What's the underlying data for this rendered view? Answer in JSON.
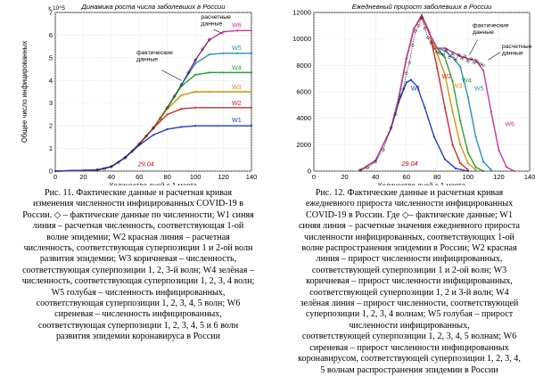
{
  "figures": [
    {
      "id": "fig11",
      "caption_lines": [
        "Рис. 11. Фактические данные и расчетная кривая",
        "изменения численности инфицированных COVID-19 в",
        "России. ◇ – фактические данные по численности; W1 синяя",
        "линия – расчетная численность, соответствующая 1-ой",
        "волне эпидемии; W2 красная линия – расчетная",
        "численность, соответствующая суперпозиции 1 и 2-ой волн",
        "развития эпидемии; W3 коричневая – численность,",
        "соответствующая суперпозиции 1, 2, 3-й волн; W4 зелёная –",
        "численность, соответствующая суперпозиции 1, 2, 3, 4 волн;",
        "W5 голубая – численность инфицированных,",
        "соответствующая суперпозиции 1, 2, 3, 4, 5 волн; W6",
        "сиреневая – численность инфицированных,",
        "соответствующая суперпозиции 1, 2, 3, 4, 5 и 6 волн",
        "развития эпидемии коронавируса в России"
      ]
    },
    {
      "id": "fig12",
      "caption_lines": [
        "Рис. 12. Фактические данные и расчетная кривая",
        "ежедневного прироста численности инфицированных",
        "COVID-19 в России. Где ◇– фактические данные; W1",
        "синяя линия – расчетные значения ежедневного прироста",
        "численности инфицированных, соответствующих 1-ой",
        "волне распространения эпидемии в России; W2 красная",
        "линия – прирост численности инфицированных,",
        "соответствующей суперпозиции 1 и 2-ой волн; W3",
        "коричневая – прирост численности инфицированных,",
        "соответствующей суперпозиции 1, 2 и 3-й волн; W4",
        "зелёная линия – прирост численности, соответствующей",
        "суперпозиции 1, 2, 3, 4 волнам; W5 голубая – прирост",
        "численности инфицированных,",
        "соответствующей суперпозиции 1, 2, 3, 4, 5 волнам; W6",
        "сиреневая – прирост численности инфицированных",
        "коронавирусом, соответствующей суперпозиции 1, 2, 3, 4,",
        "5 волнам распространения эпидемии в России"
      ]
    }
  ],
  "chart_data": [
    {
      "type": "line",
      "title": "Динамика роста числа заболевших в России",
      "xlabel": "Количество дней с 1 марта",
      "ylabel": "Общее число инфицированных",
      "y_exponent": "x 10^5",
      "xlim": [
        0,
        140
      ],
      "ylim": [
        0,
        7
      ],
      "xticks": [
        0,
        20,
        40,
        60,
        80,
        100,
        120,
        140
      ],
      "yticks": [
        0,
        1,
        2,
        3,
        4,
        5,
        6,
        7
      ],
      "grid": true,
      "annotations": [
        {
          "text": "расчетные данные",
          "x": 104,
          "y": 6.5
        },
        {
          "text": "фактические данные",
          "x": 65,
          "y": 5.1
        },
        {
          "text": "29.04",
          "x": 59,
          "y": 0.25,
          "color": "#cc0000"
        }
      ],
      "series": [
        {
          "name": "W6",
          "color": "#cc3399",
          "values": [
            [
              0,
              0
            ],
            [
              30,
              0.05
            ],
            [
              40,
              0.2
            ],
            [
              50,
              0.6
            ],
            [
              60,
              1.2
            ],
            [
              70,
              1.9
            ],
            [
              80,
              2.8
            ],
            [
              90,
              3.8
            ],
            [
              100,
              4.9
            ],
            [
              110,
              5.8
            ],
            [
              120,
              6.15
            ],
            [
              130,
              6.2
            ],
            [
              140,
              6.2
            ]
          ]
        },
        {
          "name": "W5",
          "color": "#2a8fb8",
          "values": [
            [
              0,
              0
            ],
            [
              30,
              0.05
            ],
            [
              40,
              0.2
            ],
            [
              50,
              0.6
            ],
            [
              60,
              1.2
            ],
            [
              70,
              1.9
            ],
            [
              80,
              2.8
            ],
            [
              90,
              3.8
            ],
            [
              100,
              4.75
            ],
            [
              110,
              5.15
            ],
            [
              120,
              5.2
            ],
            [
              130,
              5.2
            ],
            [
              140,
              5.2
            ]
          ]
        },
        {
          "name": "W4",
          "color": "#2ca02c",
          "values": [
            [
              0,
              0
            ],
            [
              30,
              0.05
            ],
            [
              40,
              0.2
            ],
            [
              50,
              0.6
            ],
            [
              60,
              1.2
            ],
            [
              70,
              1.9
            ],
            [
              80,
              2.8
            ],
            [
              90,
              3.75
            ],
            [
              100,
              4.25
            ],
            [
              110,
              4.35
            ],
            [
              120,
              4.35
            ],
            [
              140,
              4.35
            ]
          ]
        },
        {
          "name": "W3",
          "color": "#d4920a",
          "values": [
            [
              0,
              0
            ],
            [
              30,
              0.05
            ],
            [
              40,
              0.2
            ],
            [
              50,
              0.6
            ],
            [
              60,
              1.2
            ],
            [
              70,
              1.9
            ],
            [
              80,
              2.75
            ],
            [
              90,
              3.35
            ],
            [
              100,
              3.5
            ],
            [
              110,
              3.5
            ],
            [
              140,
              3.5
            ]
          ]
        },
        {
          "name": "W2",
          "color": "#d62728",
          "values": [
            [
              0,
              0
            ],
            [
              30,
              0.05
            ],
            [
              40,
              0.2
            ],
            [
              50,
              0.6
            ],
            [
              60,
              1.2
            ],
            [
              70,
              1.9
            ],
            [
              80,
              2.5
            ],
            [
              90,
              2.75
            ],
            [
              100,
              2.8
            ],
            [
              140,
              2.8
            ]
          ]
        },
        {
          "name": "W1",
          "color": "#1f3fbf",
          "values": [
            [
              0,
              0
            ],
            [
              30,
              0.05
            ],
            [
              40,
              0.2
            ],
            [
              50,
              0.6
            ],
            [
              60,
              1.15
            ],
            [
              70,
              1.6
            ],
            [
              80,
              1.85
            ],
            [
              90,
              1.95
            ],
            [
              100,
              2.0
            ],
            [
              140,
              2.0
            ]
          ]
        }
      ],
      "facts": [
        [
          30,
          0.05
        ],
        [
          35,
          0.1
        ],
        [
          40,
          0.2
        ],
        [
          45,
          0.38
        ],
        [
          50,
          0.6
        ],
        [
          55,
          0.88
        ],
        [
          60,
          1.2
        ],
        [
          65,
          1.55
        ],
        [
          70,
          1.9
        ],
        [
          75,
          2.32
        ],
        [
          80,
          2.8
        ],
        [
          85,
          3.3
        ],
        [
          90,
          3.8
        ],
        [
          95,
          4.35
        ],
        [
          100,
          4.9
        ],
        [
          105,
          5.38
        ],
        [
          110,
          5.8
        ]
      ]
    },
    {
      "type": "line",
      "title": "Ежедневный прирост заболевших в России",
      "xlabel": "Количество дней с 1 марта",
      "xlim": [
        0,
        140
      ],
      "ylim": [
        0,
        12000
      ],
      "xticks": [
        0,
        20,
        40,
        60,
        80,
        100,
        120,
        140
      ],
      "yticks": [
        0,
        2000,
        4000,
        6000,
        8000,
        10000,
        12000
      ],
      "grid": true,
      "annotations": [
        {
          "text": "фактические данные",
          "x": 108,
          "y": 10400
        },
        {
          "text": "расчетные данные",
          "x": 126,
          "y": 9000
        },
        {
          "text": "29.04",
          "x": 60,
          "y": 450,
          "color": "#cc0000"
        }
      ],
      "series": [
        {
          "name": "W1",
          "color": "#1f3fbf",
          "values": [
            [
              30,
              50
            ],
            [
              40,
              800
            ],
            [
              50,
              3200
            ],
            [
              55,
              5200
            ],
            [
              60,
              6700
            ],
            [
              63,
              6900
            ],
            [
              67,
              6400
            ],
            [
              72,
              4800
            ],
            [
              78,
              2600
            ],
            [
              85,
              900
            ],
            [
              92,
              200
            ],
            [
              100,
              0
            ]
          ]
        },
        {
          "name": "W2",
          "color": "#d62728",
          "values": [
            [
              30,
              50
            ],
            [
              40,
              800
            ],
            [
              50,
              3200
            ],
            [
              55,
              5500
            ],
            [
              60,
              8500
            ],
            [
              65,
              10800
            ],
            [
              70,
              11800
            ],
            [
              75,
              10500
            ],
            [
              80,
              7800
            ],
            [
              85,
              4800
            ],
            [
              90,
              2000
            ],
            [
              95,
              600
            ],
            [
              100,
              100
            ]
          ]
        },
        {
          "name": "W3",
          "color": "#d4920a",
          "values": [
            [
              30,
              50
            ],
            [
              40,
              800
            ],
            [
              50,
              3200
            ],
            [
              55,
              5500
            ],
            [
              60,
              8500
            ],
            [
              65,
              10800
            ],
            [
              70,
              11700
            ],
            [
              75,
              10400
            ],
            [
              80,
              8900
            ],
            [
              85,
              7300
            ],
            [
              90,
              4500
            ],
            [
              95,
              2000
            ],
            [
              100,
              600
            ],
            [
              105,
              100
            ]
          ]
        },
        {
          "name": "W4",
          "color": "#2ca02c",
          "values": [
            [
              30,
              50
            ],
            [
              40,
              800
            ],
            [
              50,
              3200
            ],
            [
              55,
              5500
            ],
            [
              60,
              8500
            ],
            [
              65,
              10800
            ],
            [
              70,
              11700
            ],
            [
              75,
              10400
            ],
            [
              80,
              9300
            ],
            [
              85,
              8600
            ],
            [
              90,
              6800
            ],
            [
              95,
              3800
            ],
            [
              100,
              1400
            ],
            [
              105,
              300
            ],
            [
              110,
              0
            ]
          ]
        },
        {
          "name": "W5",
          "color": "#2a8fb8",
          "values": [
            [
              30,
              50
            ],
            [
              40,
              800
            ],
            [
              50,
              3200
            ],
            [
              55,
              5500
            ],
            [
              60,
              8500
            ],
            [
              65,
              10800
            ],
            [
              70,
              11700
            ],
            [
              75,
              10400
            ],
            [
              80,
              9300
            ],
            [
              85,
              9100
            ],
            [
              90,
              8600
            ],
            [
              95,
              7900
            ],
            [
              100,
              5600
            ],
            [
              105,
              2600
            ],
            [
              110,
              700
            ],
            [
              115,
              100
            ]
          ]
        },
        {
          "name": "W6",
          "color": "#cc3399",
          "values": [
            [
              30,
              50
            ],
            [
              40,
              800
            ],
            [
              50,
              3200
            ],
            [
              55,
              5500
            ],
            [
              60,
              8500
            ],
            [
              65,
              10800
            ],
            [
              70,
              11700
            ],
            [
              75,
              10400
            ],
            [
              80,
              9300
            ],
            [
              85,
              9300
            ],
            [
              90,
              9000
            ],
            [
              95,
              8700
            ],
            [
              100,
              8500
            ],
            [
              105,
              8400
            ],
            [
              110,
              7600
            ],
            [
              115,
              4500
            ],
            [
              120,
              1600
            ],
            [
              125,
              300
            ],
            [
              130,
              0
            ]
          ]
        }
      ],
      "facts": [
        [
          30,
          80
        ],
        [
          35,
          250
        ],
        [
          40,
          700
        ],
        [
          45,
          1600
        ],
        [
          50,
          3300
        ],
        [
          53,
          4300
        ],
        [
          56,
          5700
        ],
        [
          58,
          6200
        ],
        [
          60,
          7400
        ],
        [
          62,
          8200
        ],
        [
          64,
          9500
        ],
        [
          66,
          10600
        ],
        [
          68,
          11000
        ],
        [
          70,
          11600
        ],
        [
          72,
          10800
        ],
        [
          74,
          10100
        ],
        [
          76,
          9700
        ],
        [
          78,
          9300
        ],
        [
          80,
          9000
        ],
        [
          82,
          8900
        ],
        [
          84,
          8800
        ],
        [
          86,
          9200
        ],
        [
          88,
          8600
        ],
        [
          90,
          8900
        ],
        [
          92,
          8400
        ],
        [
          94,
          8800
        ],
        [
          96,
          8500
        ],
        [
          98,
          8700
        ],
        [
          100,
          8300
        ],
        [
          102,
          8500
        ],
        [
          104,
          8200
        ],
        [
          106,
          8300
        ],
        [
          108,
          8100
        ],
        [
          110,
          8000
        ]
      ]
    }
  ]
}
